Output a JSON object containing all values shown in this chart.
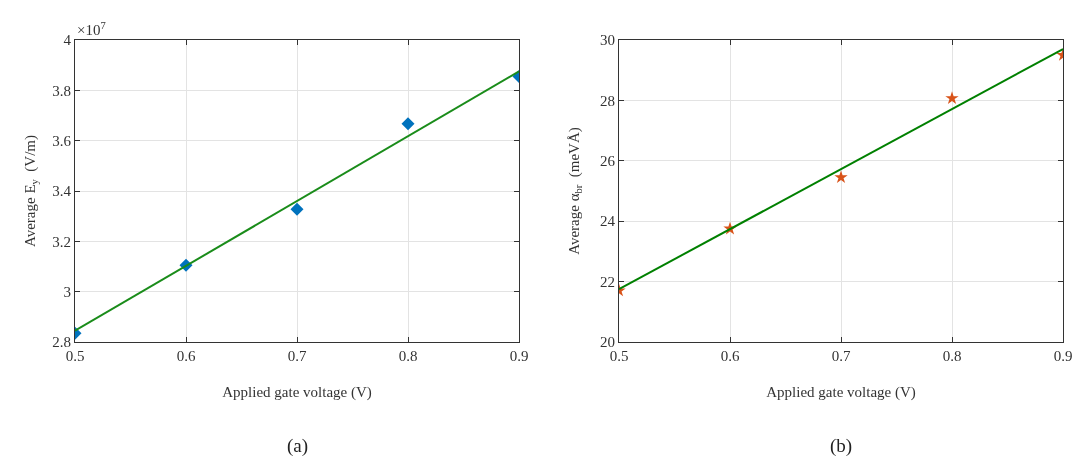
{
  "chart_data": [
    {
      "type": "scatter",
      "xlabel": "Applied gate voltage (V)",
      "ylabel": "Average E$_{y}$  (V/m)",
      "series": [
        {
          "type": "scatter",
          "color": "#0072bd",
          "marker": "diamond",
          "x": [
            0.5,
            0.6,
            0.7,
            0.8,
            0.9
          ],
          "values": [
            2.835,
            3.105,
            3.327,
            3.667,
            3.855
          ]
        },
        {
          "type": "line",
          "color": "#1a8c1a",
          "marker": "none",
          "x": [
            0.5,
            0.9
          ],
          "values": [
            2.845,
            3.875
          ]
        }
      ],
      "xlim": [
        0.5,
        0.9
      ],
      "xticks": [
        0.5,
        0.6,
        0.7,
        0.8,
        0.9
      ],
      "ylim": [
        2.8,
        4
      ],
      "yticks": [
        2.8,
        3,
        3.2,
        3.4,
        3.6,
        3.8,
        4
      ],
      "grid": true,
      "annotations": [
        "×10$^{7}$",
        "(a)"
      ]
    },
    {
      "type": "scatter",
      "xlabel": "Applied gate voltage (V)",
      "ylabel": "Average α$_{br}$  (meVÅ)",
      "series": [
        {
          "type": "scatter",
          "color": "#d95319",
          "marker": "star",
          "x": [
            0.5,
            0.6,
            0.7,
            0.8,
            0.9
          ],
          "values": [
            21.7,
            23.75,
            25.45,
            28.07,
            29.5
          ]
        },
        {
          "type": "line",
          "color": "#008000",
          "marker": "none",
          "x": [
            0.5,
            0.9
          ],
          "values": [
            21.75,
            29.7
          ]
        }
      ],
      "xlim": [
        0.5,
        0.9
      ],
      "xticks": [
        0.5,
        0.6,
        0.7,
        0.8,
        0.9
      ],
      "ylim": [
        20,
        30
      ],
      "yticks": [
        20,
        22,
        24,
        26,
        28,
        30
      ],
      "grid": true,
      "annotations": [
        "(b)"
      ]
    }
  ]
}
